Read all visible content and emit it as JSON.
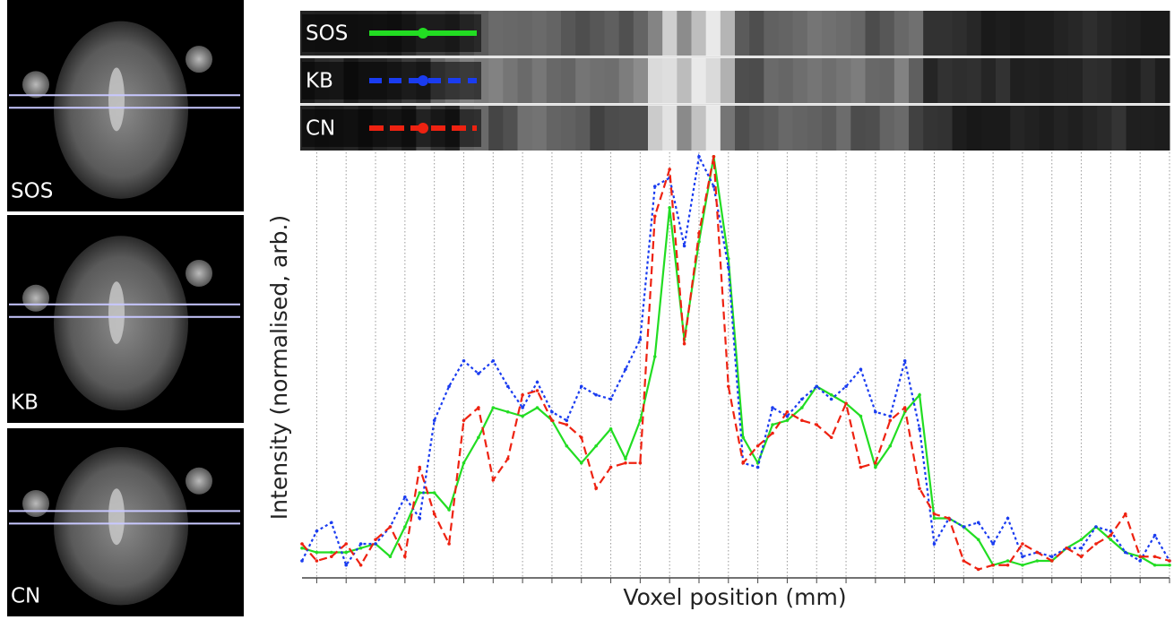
{
  "panels": [
    "SOS",
    "KB",
    "CN"
  ],
  "chart_data": {
    "type": "line",
    "x_label": "Voxel position (mm)",
    "y_label": "Intensity (normalised, arb.)",
    "x": [
      0,
      1,
      2,
      3,
      4,
      5,
      6,
      7,
      8,
      9,
      10,
      11,
      12,
      13,
      14,
      15,
      16,
      17,
      18,
      19,
      20,
      21,
      22,
      23,
      24,
      25,
      26,
      27,
      28,
      29,
      30,
      31,
      32,
      33,
      34,
      35,
      36,
      37,
      38,
      39,
      40,
      41,
      42,
      43,
      44,
      45,
      46,
      47,
      48,
      49,
      50,
      51,
      52,
      53,
      54,
      55,
      56,
      57,
      58,
      59
    ],
    "xlim": [
      0,
      59
    ],
    "xticks": [
      1,
      3,
      5,
      7,
      9,
      11,
      13,
      15,
      17,
      19,
      21,
      23,
      25,
      27,
      29,
      31,
      33,
      35,
      37,
      39,
      41,
      43,
      45,
      47,
      49,
      51,
      53,
      55,
      57,
      59
    ],
    "ylim": [
      0,
      1
    ],
    "grid": true,
    "series": [
      {
        "name": "SOS",
        "color": "#22dd22",
        "style": "solid",
        "values": [
          0.07,
          0.06,
          0.06,
          0.06,
          0.07,
          0.08,
          0.05,
          0.12,
          0.2,
          0.2,
          0.16,
          0.27,
          0.33,
          0.4,
          0.39,
          0.38,
          0.4,
          0.37,
          0.31,
          0.27,
          0.31,
          0.35,
          0.28,
          0.37,
          0.52,
          0.87,
          0.56,
          0.79,
          0.99,
          0.75,
          0.33,
          0.27,
          0.36,
          0.37,
          0.4,
          0.45,
          0.43,
          0.41,
          0.38,
          0.26,
          0.31,
          0.39,
          0.43,
          0.14,
          0.14,
          0.12,
          0.09,
          0.03,
          0.04,
          0.03,
          0.04,
          0.04,
          0.07,
          0.09,
          0.12,
          0.09,
          0.06,
          0.05,
          0.03,
          0.03
        ]
      },
      {
        "name": "KB",
        "color": "#1a3cf0",
        "style": "dotted",
        "values": [
          0.04,
          0.11,
          0.13,
          0.03,
          0.08,
          0.08,
          0.12,
          0.19,
          0.14,
          0.37,
          0.45,
          0.51,
          0.48,
          0.51,
          0.45,
          0.4,
          0.46,
          0.39,
          0.37,
          0.45,
          0.43,
          0.42,
          0.49,
          0.56,
          0.92,
          0.94,
          0.78,
          0.99,
          0.92,
          0.73,
          0.27,
          0.26,
          0.4,
          0.38,
          0.42,
          0.45,
          0.42,
          0.45,
          0.49,
          0.39,
          0.38,
          0.51,
          0.35,
          0.08,
          0.14,
          0.12,
          0.13,
          0.08,
          0.14,
          0.05,
          0.06,
          0.05,
          0.07,
          0.07,
          0.12,
          0.11,
          0.06,
          0.04,
          0.1,
          0.04
        ]
      },
      {
        "name": "CN",
        "color": "#ee2211",
        "style": "dashed",
        "values": [
          0.08,
          0.04,
          0.05,
          0.08,
          0.03,
          0.09,
          0.12,
          0.05,
          0.26,
          0.15,
          0.08,
          0.37,
          0.4,
          0.23,
          0.28,
          0.43,
          0.44,
          0.37,
          0.36,
          0.33,
          0.21,
          0.26,
          0.27,
          0.27,
          0.85,
          0.96,
          0.55,
          0.81,
          0.99,
          0.45,
          0.27,
          0.31,
          0.34,
          0.39,
          0.37,
          0.36,
          0.33,
          0.41,
          0.26,
          0.27,
          0.37,
          0.4,
          0.21,
          0.15,
          0.14,
          0.04,
          0.02,
          0.03,
          0.03,
          0.08,
          0.06,
          0.04,
          0.07,
          0.05,
          0.08,
          0.1,
          0.15,
          0.05,
          0.05,
          0.04
        ]
      }
    ]
  }
}
